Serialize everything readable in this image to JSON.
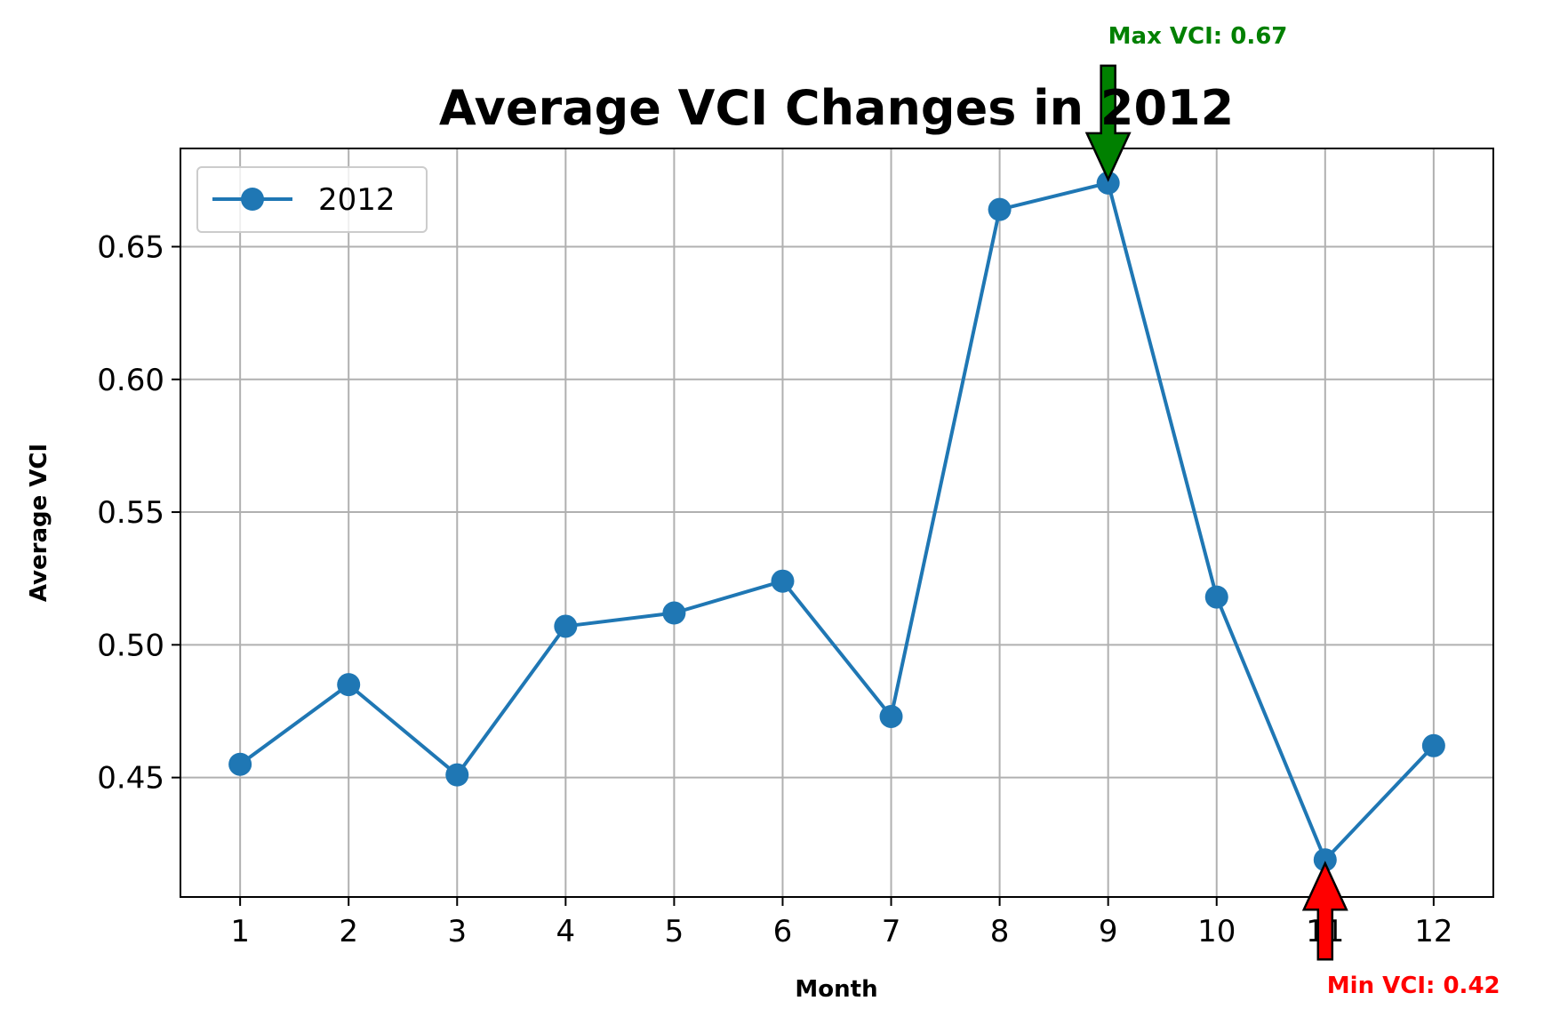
{
  "chart_data": {
    "type": "line",
    "title": "Average VCI Changes in 2012",
    "xlabel": "Month",
    "ylabel": "Average VCI",
    "categories": [
      "1",
      "2",
      "3",
      "4",
      "5",
      "6",
      "7",
      "8",
      "9",
      "10",
      "11",
      "12"
    ],
    "x": [
      1,
      2,
      3,
      4,
      5,
      6,
      7,
      8,
      9,
      10,
      11,
      12
    ],
    "series": [
      {
        "name": "2012",
        "color": "#1f77b4",
        "values": [
          0.455,
          0.485,
          0.451,
          0.507,
          0.512,
          0.524,
          0.473,
          0.664,
          0.674,
          0.518,
          0.419,
          0.462
        ]
      }
    ],
    "xlim": [
      0.45,
      12.55
    ],
    "ylim": [
      0.405,
      0.687
    ],
    "yticks": [
      0.45,
      0.5,
      0.55,
      0.6,
      0.65
    ],
    "ytick_labels": [
      "0.45",
      "0.50",
      "0.55",
      "0.60",
      "0.65"
    ],
    "grid": true,
    "legend": {
      "position": "top-left"
    },
    "annotations": [
      {
        "text": "Max VCI: 0.67",
        "month": 9,
        "value": 0.674,
        "color": "#008000",
        "arrow": "down"
      },
      {
        "text": "Min VCI: 0.42",
        "month": 11,
        "value": 0.419,
        "color": "#ff0000",
        "arrow": "up"
      }
    ]
  }
}
